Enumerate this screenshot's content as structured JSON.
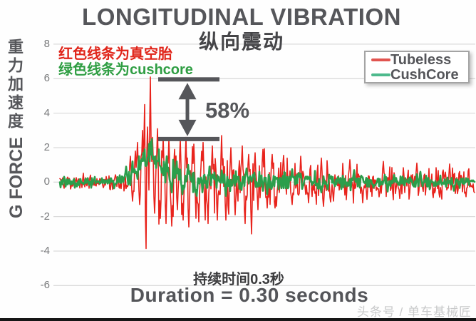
{
  "title": {
    "main": "LONGITUDINAL VIBRATION",
    "sub_zh": "纵向震动"
  },
  "y_axis": {
    "label_zh": "重力加速度",
    "label_en": "G FORCE",
    "ticks": [
      8,
      6,
      4,
      2,
      0,
      -2,
      -4,
      -6
    ]
  },
  "notes": {
    "red": "红色线条为真空胎",
    "green": "绿色线条为cushcore"
  },
  "annotation": {
    "percent_label": "58%",
    "upper_bar_g": 6.0,
    "lower_bar_g": 2.5
  },
  "legend": {
    "items": [
      {
        "label": "Tubeless",
        "swatch_color": "#e15450"
      },
      {
        "label": "CushCore",
        "swatch_color": "#4eba8d"
      }
    ]
  },
  "footer": {
    "duration_zh": "持续时间0.3秒",
    "duration_en": "Duration = 0.30 seconds",
    "watermark": "头条号 / 单车基械匠"
  },
  "colors": {
    "accent_red": "#e8231c",
    "accent_green": "#2b9e4b",
    "annotation_gray": "#55565a",
    "gridline": "#dbdbdb",
    "text_dark": "#55565a"
  },
  "chart_data": {
    "type": "line",
    "title": "LONGITUDINAL VIBRATION (纵向震动)",
    "ylabel": "G FORCE (重力加速度)",
    "xlabel": "time (no tick labels shown; event duration labeled as 0.30 seconds)",
    "ylim": [
      -6,
      8
    ],
    "yticks": [
      8,
      6,
      4,
      2,
      0,
      -2,
      -4,
      -6
    ],
    "grid": "horizontal",
    "legend_position": "top-right",
    "key_readings": {
      "tubeless_peak_g": 6.1,
      "tubeless_min_g": -3.85,
      "cushcore_peak_g": 2.5,
      "vibration_reduction_percent": 58,
      "duration_seconds": 0.3
    },
    "n_points": 583,
    "series": [
      {
        "name": "Tubeless",
        "color": "#e8231c",
        "stroke_width": 1.6,
        "seed": 11,
        "phase": 0.7,
        "clamp": [
          -4.05,
          6.15
        ],
        "amp_envelope": [
          [
            0,
            0.42
          ],
          [
            0.1,
            0.45
          ],
          [
            0.14,
            0.55
          ],
          [
            0.17,
            0.9
          ],
          [
            0.195,
            1.6
          ],
          [
            0.21,
            2.2
          ],
          [
            0.23,
            2.4
          ],
          [
            0.26,
            2.3
          ],
          [
            0.31,
            2.3
          ],
          [
            0.38,
            2.0
          ],
          [
            0.45,
            1.8
          ],
          [
            0.55,
            1.5
          ],
          [
            0.65,
            1.2
          ],
          [
            0.8,
            1.0
          ],
          [
            1,
            0.8
          ]
        ],
        "mean_envelope": [
          [
            0,
            0
          ],
          [
            0.17,
            0
          ],
          [
            0.2,
            0.5
          ],
          [
            0.23,
            0.3
          ],
          [
            0.27,
            0
          ],
          [
            1,
            0
          ]
        ],
        "events": [
          [
            0.17,
            1.5
          ],
          [
            0.176,
            -1.1
          ],
          [
            0.182,
            1.8
          ],
          [
            0.188,
            2.3
          ],
          [
            0.193,
            -1.3
          ],
          [
            0.199,
            3.0
          ],
          [
            0.2042,
            4.5
          ],
          [
            0.2076,
            -3.85
          ],
          [
            0.211,
            3.2
          ],
          [
            0.2179,
            6.1
          ],
          [
            0.223,
            2.6
          ],
          [
            0.2282,
            -1.8
          ],
          [
            0.2351,
            3.1
          ],
          [
            0.242,
            -2.1
          ],
          [
            0.2489,
            2.55
          ],
          [
            0.2558,
            -2.4
          ],
          [
            0.2627,
            2.5
          ],
          [
            0.2696,
            -2.55
          ],
          [
            0.2771,
            1.9
          ],
          [
            0.284,
            -1.6
          ],
          [
            0.2909,
            2.5
          ],
          [
            0.2978,
            -2.2
          ],
          [
            0.3047,
            2.6
          ],
          [
            0.3116,
            -2.6
          ],
          [
            0.3237,
            2.2
          ],
          [
            0.3347,
            -2.3
          ],
          [
            0.3458,
            2.3
          ],
          [
            0.3568,
            -2.4
          ],
          [
            0.3678,
            2.1
          ],
          [
            0.3789,
            -2.2
          ],
          [
            0.3899,
            2.7
          ],
          [
            0.401,
            -2.2
          ],
          [
            0.412,
            2.0
          ],
          [
            0.423,
            -1.9
          ],
          [
            0.44,
            2.1
          ],
          [
            0.4475,
            -2.4
          ],
          [
            0.455,
            1.6
          ],
          [
            0.4625,
            -3.0
          ],
          [
            0.47,
            1.7
          ],
          [
            0.4782,
            -1.6
          ],
          [
            0.4893,
            1.9
          ],
          [
            0.5003,
            -1.5
          ],
          [
            0.5114,
            1.6
          ],
          [
            0.5224,
            -1.4
          ],
          [
            0.54,
            1.55
          ],
          [
            0.56,
            -1.3
          ],
          [
            0.58,
            1.5
          ],
          [
            0.6,
            -1.2
          ],
          [
            0.63,
            1.4
          ],
          [
            0.66,
            -1.1
          ],
          [
            0.7,
            1.3
          ],
          [
            0.74,
            -1.0
          ],
          [
            0.78,
            1.2
          ],
          [
            0.82,
            -0.95
          ],
          [
            0.86,
            1.1
          ],
          [
            0.9,
            -0.9
          ],
          [
            0.94,
            1.05
          ],
          [
            0.98,
            -0.85
          ]
        ]
      },
      {
        "name": "CushCore",
        "color": "#2b9e4b",
        "stroke_width": 2.6,
        "seed": 77,
        "phase": 2.1,
        "clamp": [
          -2.2,
          2.55
        ],
        "amp_envelope": [
          [
            0,
            0.3
          ],
          [
            0.1,
            0.32
          ],
          [
            0.15,
            0.45
          ],
          [
            0.19,
            0.55
          ],
          [
            0.23,
            0.6
          ],
          [
            0.28,
            0.9
          ],
          [
            0.33,
            0.85
          ],
          [
            0.4,
            0.7
          ],
          [
            0.5,
            0.6
          ],
          [
            0.65,
            0.5
          ],
          [
            0.8,
            0.4
          ],
          [
            1,
            0.33
          ]
        ],
        "mean_envelope": [
          [
            0,
            0
          ],
          [
            0.13,
            0.05
          ],
          [
            0.165,
            0.3
          ],
          [
            0.19,
            0.8
          ],
          [
            0.21,
            1.5
          ],
          [
            0.2225,
            2.0
          ],
          [
            0.235,
            1.1
          ],
          [
            0.25,
            0.55
          ],
          [
            0.28,
            0.25
          ],
          [
            0.33,
            0.1
          ],
          [
            0.45,
            0.05
          ],
          [
            1,
            0
          ]
        ],
        "events": [
          [
            0.16,
            0.9
          ],
          [
            0.175,
            1.2
          ],
          [
            0.19,
            1.5
          ],
          [
            0.205,
            1.9
          ],
          [
            0.2145,
            2.2
          ],
          [
            0.2225,
            2.5
          ],
          [
            0.23,
            1.5
          ],
          [
            0.238,
            1.9
          ],
          [
            0.248,
            0.8
          ],
          [
            0.258,
            1.5
          ],
          [
            0.27,
            -0.6
          ],
          [
            0.282,
            1.2
          ],
          [
            0.295,
            -0.7
          ],
          [
            0.31,
            1.0
          ],
          [
            0.33,
            -0.8
          ],
          [
            0.36,
            0.9
          ],
          [
            0.4,
            -0.8
          ],
          [
            0.45,
            0.8
          ],
          [
            0.5,
            -0.7
          ],
          [
            0.56,
            0.75
          ],
          [
            0.63,
            -0.6
          ],
          [
            0.71,
            0.7
          ],
          [
            0.79,
            -0.55
          ],
          [
            0.87,
            0.6
          ],
          [
            0.95,
            -0.5
          ]
        ]
      }
    ]
  }
}
